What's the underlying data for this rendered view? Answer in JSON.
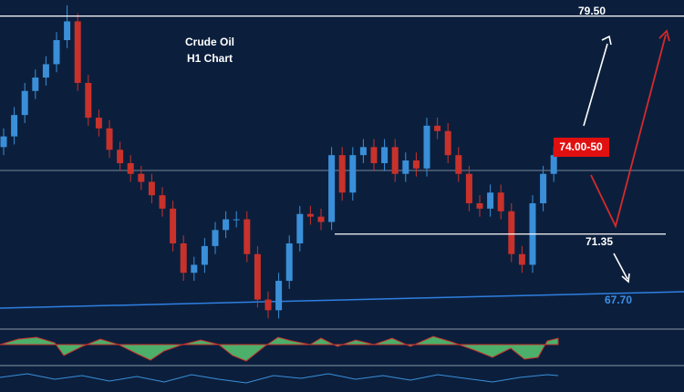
{
  "chart_data": {
    "type": "candlestick",
    "title": "Crude Oil",
    "subtitle": "H1 Chart",
    "open": [
      74.6,
      75.0,
      75.8,
      76.7,
      77.2,
      77.7,
      78.6,
      79.3,
      77.0,
      75.7,
      75.3,
      74.5,
      74.0,
      73.6,
      73.3,
      72.8,
      72.3,
      71.0,
      69.9,
      70.2,
      70.9,
      71.5,
      71.9,
      71.9,
      70.6,
      68.9,
      68.5,
      69.6,
      71.0,
      72.1,
      72.0,
      71.8,
      74.3,
      72.9,
      74.3,
      74.6,
      74.0,
      74.6,
      73.6,
      74.1,
      73.8,
      75.4,
      75.2,
      74.3,
      73.6,
      72.5,
      72.3,
      72.9,
      72.2,
      70.6,
      70.2,
      72.5,
      73.6
    ],
    "high": [
      75.3,
      76.1,
      77.0,
      77.5,
      78.0,
      78.9,
      79.9,
      79.6,
      77.3,
      76.0,
      75.6,
      74.8,
      74.3,
      73.9,
      73.6,
      73.1,
      72.6,
      71.3,
      70.5,
      71.2,
      71.8,
      72.2,
      72.2,
      72.2,
      70.9,
      69.2,
      69.9,
      71.3,
      72.4,
      72.4,
      72.3,
      74.6,
      74.6,
      74.6,
      74.9,
      74.9,
      74.9,
      74.9,
      74.4,
      74.4,
      75.7,
      75.7,
      75.5,
      74.6,
      73.9,
      72.8,
      73.2,
      73.2,
      72.5,
      70.9,
      72.8,
      73.9,
      74.6
    ],
    "low": [
      74.3,
      74.7,
      75.5,
      76.4,
      76.9,
      77.4,
      78.3,
      76.7,
      75.4,
      75.0,
      74.2,
      73.7,
      73.3,
      73.0,
      72.5,
      72.0,
      70.7,
      69.6,
      69.6,
      69.9,
      70.6,
      71.2,
      71.6,
      70.3,
      68.6,
      68.2,
      68.2,
      69.3,
      70.7,
      71.7,
      71.5,
      71.5,
      72.6,
      72.6,
      74.0,
      73.7,
      73.7,
      73.3,
      73.3,
      73.5,
      73.5,
      74.9,
      74.0,
      73.3,
      72.2,
      72.0,
      72.0,
      71.9,
      70.3,
      69.9,
      69.9,
      72.2,
      73.3
    ],
    "close": [
      75.0,
      75.8,
      76.7,
      77.2,
      77.7,
      78.6,
      79.3,
      77.0,
      75.7,
      75.3,
      74.5,
      74.0,
      73.6,
      73.3,
      72.8,
      72.3,
      71.0,
      69.9,
      70.2,
      70.9,
      71.5,
      71.9,
      71.9,
      70.6,
      68.9,
      68.5,
      69.6,
      71.0,
      72.1,
      72.0,
      71.8,
      74.3,
      72.9,
      74.3,
      74.6,
      74.0,
      74.6,
      73.6,
      74.1,
      73.8,
      75.4,
      75.2,
      74.3,
      73.6,
      72.5,
      72.3,
      72.9,
      72.2,
      70.6,
      70.2,
      72.5,
      73.6,
      74.3
    ],
    "up_color": "#3a8fd8",
    "down_color": "#c8322b",
    "ylim": [
      68,
      80.1
    ],
    "levels": [
      {
        "value": 79.5,
        "label": "79.50"
      },
      71.35
    ],
    "annotations": {
      "target": "74.00-50",
      "trendline": "67.70"
    }
  }
}
